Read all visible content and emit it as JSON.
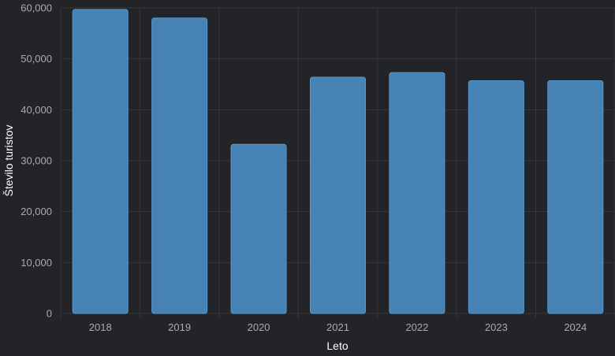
{
  "chart_data": {
    "type": "bar",
    "categories": [
      "2018",
      "2019",
      "2020",
      "2021",
      "2022",
      "2023",
      "2024"
    ],
    "values": [
      59700,
      58000,
      33200,
      46400,
      47300,
      45700,
      45700
    ],
    "xlabel": "Leto",
    "ylabel": "Število turistov",
    "ylim": [
      0,
      60000
    ],
    "yticks": [
      "0",
      "10,000",
      "20,000",
      "30,000",
      "40,000",
      "50,000",
      "60,000"
    ],
    "grid": true,
    "bar_color": "#4682b4",
    "background": "#232427"
  }
}
